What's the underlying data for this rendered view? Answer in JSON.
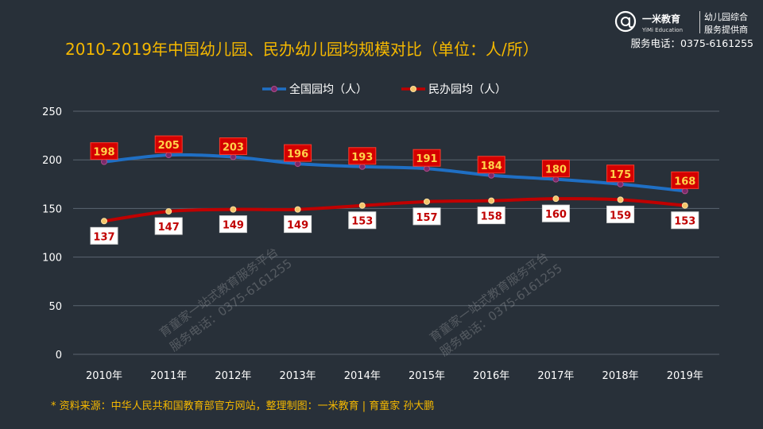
{
  "title": "2010-2019年中国幼儿园、民办幼儿园均规模对比（单位：人/所）",
  "brand": {
    "name": "一米教育",
    "english": "YiMi Education",
    "tagline1": "幼儿园综合",
    "tagline2": "服务提供商",
    "phone": "服务电话：0375-6161255"
  },
  "source": "* 资料来源：中华人民共和国教育部官方网站，整理制图：一米教育 | 育童家  孙大鹏",
  "watermark": {
    "line1": "育童家一站式教育服务平台",
    "line2": "服务电话：0375-6161255"
  },
  "colors": {
    "background": "#283039",
    "title": "#f5b800",
    "national": "#1f6fc4",
    "private": "#c00000",
    "label_red": "#d40000",
    "label_red_text": "#ffd24a",
    "label_white": "#ffffff",
    "label_white_text": "#c00000"
  },
  "chart_data": {
    "type": "line",
    "categories": [
      "2010年",
      "2011年",
      "2012年",
      "2013年",
      "2014年",
      "2015年",
      "2016年",
      "2017年",
      "2018年",
      "2019年"
    ],
    "series": [
      {
        "name": "全国园均（人）",
        "values": [
          198,
          205,
          203,
          196,
          193,
          191,
          184,
          180,
          175,
          168
        ]
      },
      {
        "name": "民办园均（人）",
        "values": [
          137,
          147,
          149,
          149,
          153,
          157,
          158,
          160,
          159,
          153
        ]
      }
    ],
    "ylim": [
      0,
      250
    ],
    "yticks": [
      0,
      50,
      100,
      150,
      200,
      250
    ],
    "grid": true,
    "legend": "top-center"
  }
}
